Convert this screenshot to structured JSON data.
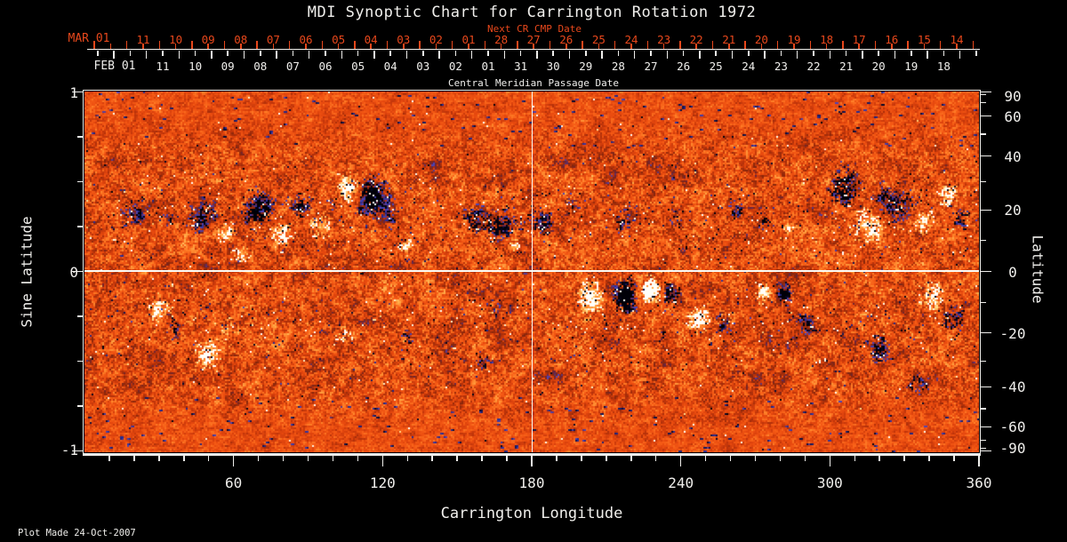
{
  "header": {
    "title": "MDI Synoptic Chart for Carrington Rotation 1972",
    "next_cr_axis_label": "Next CR CMP Date",
    "cmp_axis_label": "Central Meridian Passage Date"
  },
  "footer": {
    "xaxis_label": "Carrington Longitude",
    "plot_made": "Plot Made 24-Oct-2007"
  },
  "colors": {
    "background": "#000000",
    "text": "#f0efec",
    "accent_red": "#e8481c",
    "frame": "#edece8",
    "crosshair": "#fbfaf4"
  },
  "axes": {
    "next_cr_dates": {
      "month_label": "MAR 01",
      "days": [
        "11",
        "10",
        "09",
        "08",
        "07",
        "06",
        "05",
        "04",
        "03",
        "02",
        "01",
        "28",
        "27",
        "26",
        "25",
        "24",
        "23",
        "22",
        "21",
        "20",
        "19",
        "18",
        "17",
        "16",
        "15",
        "14"
      ]
    },
    "cmp_dates": {
      "month_label": "FEB 01",
      "days": [
        "11",
        "10",
        "09",
        "08",
        "07",
        "06",
        "05",
        "04",
        "03",
        "02",
        "01",
        "31",
        "30",
        "29",
        "28",
        "27",
        "26",
        "25",
        "24",
        "23",
        "22",
        "21",
        "20",
        "19",
        "18"
      ]
    },
    "longitude": {
      "labeled": [
        60,
        120,
        180,
        240,
        300,
        360
      ],
      "minor_step_deg": 10,
      "range": [
        0,
        360
      ]
    },
    "sine_latitude": {
      "label": "Sine Latitude",
      "labeled": [
        [
          1,
          "1"
        ],
        [
          0,
          "0"
        ],
        [
          -1,
          "-1"
        ]
      ],
      "minor_step": 0.25,
      "range": [
        -1,
        1
      ]
    },
    "latitude": {
      "label": "Latitude",
      "labeled": [
        [
          90,
          "90"
        ],
        [
          60,
          "60"
        ],
        [
          40,
          "40"
        ],
        [
          20,
          "20"
        ],
        [
          0,
          "0"
        ],
        [
          -20,
          "-20"
        ],
        [
          -40,
          "-40"
        ],
        [
          -60,
          "-60"
        ],
        [
          -90,
          "-90"
        ]
      ],
      "minor_step_deg": 10
    }
  },
  "chart_data": {
    "type": "heatmap",
    "title": "MDI Synoptic Chart for Carrington Rotation 1972",
    "xlabel": "Carrington Longitude",
    "ylabel_left": "Sine Latitude",
    "ylabel_right": "Latitude",
    "top_axis_label": "Central Meridian Passage Date",
    "x_range": [
      0,
      360
    ],
    "y_range_sine_latitude": [
      -1,
      1
    ],
    "grid": {
      "meridian_line_longitude": 180,
      "equator_line_latitude": 0
    },
    "legend": "none",
    "noise_seed": 7,
    "colormap_stops": [
      [
        -0.75,
        0,
        0,
        8
      ],
      [
        -0.52,
        8,
        10,
        48
      ],
      [
        -0.36,
        34,
        40,
        140
      ],
      [
        -0.25,
        80,
        70,
        185
      ],
      [
        -0.2,
        105,
        35,
        60
      ],
      [
        -0.15,
        135,
        38,
        10
      ],
      [
        -0.07,
        190,
        52,
        10
      ],
      [
        0.0,
        230,
        72,
        14
      ],
      [
        0.06,
        246,
        92,
        22
      ],
      [
        0.13,
        255,
        128,
        40
      ],
      [
        0.21,
        255,
        176,
        76
      ],
      [
        0.3,
        255,
        220,
        140
      ],
      [
        0.42,
        255,
        248,
        225
      ],
      [
        0.6,
        255,
        255,
        250
      ]
    ],
    "active_regions": {
      "columns": [
        "longitude_deg",
        "sine_latitude",
        "sigma_lon_deg",
        "sigma_sine_lat",
        "amplitude"
      ],
      "rows": [
        [
          20,
          0.33,
          3.5,
          0.05,
          -0.45
        ],
        [
          34,
          0.3,
          2.5,
          0.04,
          -0.3
        ],
        [
          48,
          0.3,
          4.5,
          0.06,
          -0.55
        ],
        [
          57,
          0.22,
          3.5,
          0.05,
          0.5
        ],
        [
          63,
          0.1,
          2.5,
          0.04,
          0.4
        ],
        [
          71,
          0.34,
          5,
          0.07,
          -0.6
        ],
        [
          79,
          0.21,
          4,
          0.06,
          0.55
        ],
        [
          87,
          0.36,
          3.5,
          0.05,
          -0.5
        ],
        [
          95,
          0.26,
          3.5,
          0.05,
          0.45
        ],
        [
          101,
          0.38,
          3,
          0.05,
          -0.4
        ],
        [
          107,
          0.46,
          3.5,
          0.06,
          0.8
        ],
        [
          115,
          0.42,
          4.5,
          0.07,
          -0.9
        ],
        [
          123,
          0.3,
          2.5,
          0.04,
          -0.4
        ],
        [
          129,
          0.15,
          2.5,
          0.04,
          0.35
        ],
        [
          158,
          0.3,
          3.5,
          0.05,
          -0.55
        ],
        [
          168,
          0.25,
          4,
          0.06,
          -0.6
        ],
        [
          173,
          0.15,
          2.5,
          0.04,
          0.5
        ],
        [
          184,
          0.28,
          3.5,
          0.05,
          -0.55
        ],
        [
          196,
          0.38,
          2.5,
          0.04,
          -0.3
        ],
        [
          217,
          0.28,
          2.5,
          0.05,
          -0.35
        ],
        [
          238,
          0.3,
          2.5,
          0.04,
          -0.3
        ],
        [
          262,
          0.35,
          2.5,
          0.04,
          -0.3
        ],
        [
          274,
          0.28,
          2.5,
          0.04,
          -0.35
        ],
        [
          283,
          0.24,
          2,
          0.04,
          0.35
        ],
        [
          306,
          0.46,
          4.5,
          0.07,
          -0.6
        ],
        [
          316,
          0.26,
          4.5,
          0.07,
          0.6
        ],
        [
          322,
          0.4,
          3.5,
          0.06,
          -0.45
        ],
        [
          330,
          0.34,
          4,
          0.07,
          -0.45
        ],
        [
          337,
          0.28,
          3.5,
          0.05,
          0.5
        ],
        [
          348,
          0.42,
          2.5,
          0.05,
          0.55
        ],
        [
          353,
          0.3,
          2.5,
          0.05,
          -0.4
        ],
        [
          30,
          -0.2,
          3.5,
          0.05,
          0.55
        ],
        [
          37,
          -0.29,
          2.5,
          0.05,
          -0.35
        ],
        [
          50,
          -0.46,
          3.5,
          0.06,
          0.6
        ],
        [
          58,
          -0.3,
          2.5,
          0.04,
          0.35
        ],
        [
          104,
          -0.35,
          2.5,
          0.05,
          0.3
        ],
        [
          130,
          -0.38,
          2.5,
          0.05,
          -0.3
        ],
        [
          160,
          -0.5,
          2.5,
          0.04,
          -0.4
        ],
        [
          164,
          -0.2,
          2.5,
          0.04,
          -0.35
        ],
        [
          204,
          -0.14,
          3.5,
          0.06,
          0.7
        ],
        [
          218,
          -0.13,
          3.5,
          0.06,
          -0.85
        ],
        [
          228,
          -0.11,
          2.5,
          0.05,
          0.9
        ],
        [
          236,
          -0.12,
          2.5,
          0.05,
          -0.6
        ],
        [
          248,
          -0.26,
          3,
          0.05,
          0.65
        ],
        [
          257,
          -0.28,
          2.5,
          0.05,
          -0.5
        ],
        [
          274,
          -0.11,
          2.5,
          0.04,
          0.6
        ],
        [
          281,
          -0.12,
          2.5,
          0.04,
          -0.65
        ],
        [
          291,
          -0.3,
          2.5,
          0.05,
          -0.4
        ],
        [
          320,
          -0.43,
          3.5,
          0.06,
          -0.5
        ],
        [
          335,
          -0.6,
          3.5,
          0.05,
          -0.35
        ],
        [
          342,
          -0.13,
          3.5,
          0.06,
          0.55
        ],
        [
          350,
          -0.26,
          3.5,
          0.06,
          -0.45
        ]
      ]
    }
  }
}
